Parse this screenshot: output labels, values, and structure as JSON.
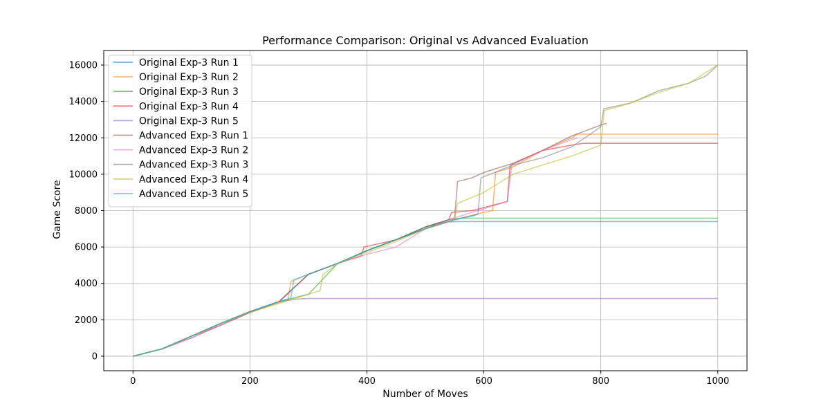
{
  "chart_data": {
    "type": "line",
    "title": "Performance Comparison: Original vs Advanced Evaluation",
    "xlabel": "Number of Moves",
    "ylabel": "Game Score",
    "xlim": [
      -50,
      1050
    ],
    "ylim": [
      -800,
      16800
    ],
    "xticks": [
      0,
      200,
      400,
      600,
      800,
      1000
    ],
    "yticks": [
      0,
      2000,
      4000,
      6000,
      8000,
      10000,
      12000,
      14000,
      16000
    ],
    "grid": true,
    "legend_position": "top-left",
    "series": [
      {
        "name": "Original Exp-3 Run 1",
        "color": "#1f77b4",
        "x": [
          0,
          50,
          100,
          150,
          200,
          250,
          300,
          350,
          400,
          450,
          500,
          520,
          540,
          560,
          580,
          1000
        ],
        "y": [
          0,
          400,
          1100,
          1800,
          2450,
          3000,
          4500,
          5100,
          5800,
          6400,
          7100,
          7300,
          7380,
          7400,
          7400,
          7400
        ]
      },
      {
        "name": "Original Exp-3 Run 2",
        "color": "#ff7f0e",
        "x": [
          0,
          50,
          100,
          150,
          200,
          265,
          270,
          300,
          350,
          400,
          450,
          500,
          550,
          600,
          615,
          620,
          650,
          700,
          750,
          760,
          1000
        ],
        "y": [
          0,
          400,
          1100,
          1800,
          2450,
          3100,
          4100,
          4500,
          5100,
          5800,
          6400,
          7000,
          7500,
          7900,
          8000,
          10100,
          10400,
          11300,
          12000,
          12200,
          12200
        ]
      },
      {
        "name": "Original Exp-3 Run 3",
        "color": "#2ca02c",
        "x": [
          0,
          50,
          100,
          150,
          200,
          250,
          300,
          350,
          400,
          450,
          500,
          540,
          560,
          1000
        ],
        "y": [
          0,
          400,
          1100,
          1800,
          2400,
          3000,
          3400,
          5100,
          5800,
          6400,
          7100,
          7500,
          7580,
          7580
        ]
      },
      {
        "name": "Original Exp-3 Run 4",
        "color": "#d62728",
        "x": [
          0,
          50,
          100,
          150,
          200,
          250,
          300,
          350,
          390,
          395,
          450,
          500,
          540,
          545,
          580,
          640,
          645,
          700,
          750,
          770,
          1000
        ],
        "y": [
          0,
          400,
          1100,
          1700,
          2400,
          3000,
          4500,
          5100,
          5500,
          6000,
          6400,
          7000,
          7500,
          7900,
          8000,
          8500,
          10500,
          11300,
          11600,
          11700,
          11700
        ]
      },
      {
        "name": "Original Exp-3 Run 5",
        "color": "#9467bd",
        "x": [
          0,
          50,
          100,
          150,
          200,
          250,
          285,
          300,
          1000
        ],
        "y": [
          0,
          400,
          1000,
          1700,
          2400,
          3000,
          3150,
          3170,
          3170
        ]
      },
      {
        "name": "Advanced Exp-3 Run 1",
        "color": "#8c564b",
        "x": [
          0,
          50,
          100,
          150,
          200,
          250,
          300,
          350,
          400,
          450,
          500,
          550,
          555,
          580,
          600,
          650,
          700,
          750,
          800,
          810
        ],
        "y": [
          0,
          400,
          1100,
          1800,
          2450,
          3000,
          4500,
          5100,
          5800,
          6400,
          7100,
          7600,
          9600,
          9800,
          10100,
          10600,
          11300,
          12100,
          12700,
          12800
        ]
      },
      {
        "name": "Advanced Exp-3 Run 2",
        "color": "#e377c2",
        "x": [
          0,
          50,
          100,
          150,
          200,
          250,
          300,
          350,
          400,
          450,
          500,
          550,
          600,
          640,
          648,
          700,
          750,
          760
        ],
        "y": [
          0,
          400,
          1000,
          1700,
          2400,
          3000,
          4500,
          5100,
          5600,
          6000,
          7000,
          7600,
          8100,
          8500,
          10500,
          11300,
          11900,
          12000
        ]
      },
      {
        "name": "Advanced Exp-3 Run 3",
        "color": "#7f7f7f",
        "x": [
          0,
          50,
          100,
          150,
          200,
          250,
          300,
          350,
          400,
          450,
          500,
          550,
          590,
          595,
          650,
          700,
          750,
          800,
          805,
          850,
          900,
          950,
          980,
          1000
        ],
        "y": [
          0,
          400,
          1100,
          1800,
          2450,
          3000,
          4500,
          5100,
          5800,
          6400,
          7000,
          7500,
          7800,
          9800,
          10500,
          10900,
          11500,
          12600,
          13600,
          13900,
          14600,
          15000,
          15400,
          16000
        ]
      },
      {
        "name": "Advanced Exp-3 Run 4",
        "color": "#bcbd22",
        "x": [
          0,
          50,
          100,
          150,
          200,
          250,
          300,
          320,
          325,
          350,
          400,
          450,
          500,
          550,
          555,
          600,
          650,
          700,
          750,
          800,
          806,
          850,
          900,
          950,
          1000
        ],
        "y": [
          0,
          400,
          1100,
          1800,
          2400,
          2900,
          3400,
          3600,
          4500,
          5100,
          5700,
          6300,
          7000,
          7500,
          8400,
          9000,
          10000,
          10500,
          11000,
          11600,
          13500,
          13900,
          14500,
          15000,
          16000
        ]
      },
      {
        "name": "Advanced Exp-3 Run 5",
        "color": "#17becf",
        "x": [
          0,
          50,
          100,
          150,
          200,
          250,
          270,
          275,
          300,
          350,
          400,
          450,
          500,
          550,
          580,
          590
        ],
        "y": [
          0,
          400,
          1100,
          1800,
          2450,
          3000,
          3200,
          4200,
          4500,
          5100,
          5800,
          6400,
          7000,
          7500,
          7700,
          7800
        ]
      }
    ]
  }
}
